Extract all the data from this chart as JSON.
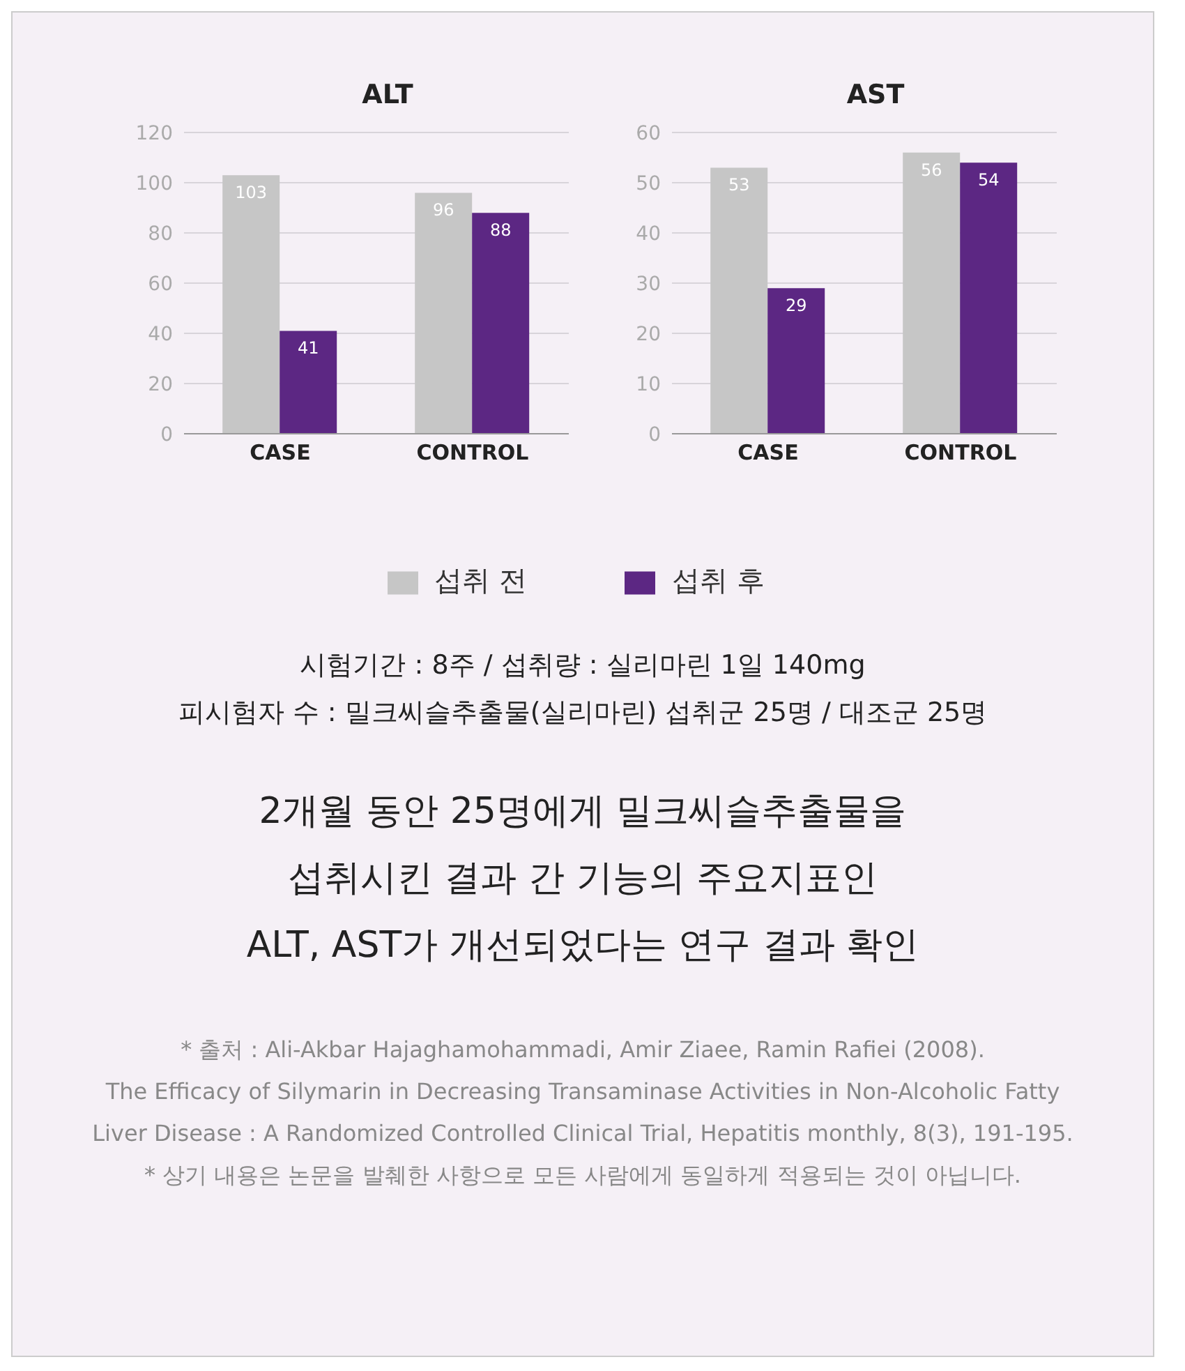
{
  "chart_data": [
    {
      "type": "bar",
      "title": "ALT",
      "categories": [
        "CASE",
        "CONTROL"
      ],
      "series": [
        {
          "name": "섭취 전",
          "color": "#c6c6c6",
          "values": [
            103,
            96
          ]
        },
        {
          "name": "섭취 후",
          "color": "#5c2783",
          "values": [
            41,
            88
          ]
        }
      ],
      "ylim": [
        0,
        120
      ],
      "yticks": [
        0,
        20,
        40,
        60,
        80,
        100,
        120
      ],
      "grid": "y",
      "data_labels": true,
      "legend": "bottom"
    },
    {
      "type": "bar",
      "title": "AST",
      "categories": [
        "CASE",
        "CONTROL"
      ],
      "series": [
        {
          "color": "#c6c6c6",
          "values": [
            53,
            56
          ]
        },
        {
          "color": "#5c2783",
          "values": [
            29,
            54
          ]
        }
      ],
      "ylim": [
        0,
        60
      ],
      "yticks": [
        0,
        10,
        20,
        30,
        40,
        50,
        60
      ],
      "grid": "y",
      "data_labels": true,
      "annotations": [
        "시험기간 : 8주 / 섭취량 : 실리마린 1일 140mg",
        "피시험자 수 : 밀크씨슬추출물(실리마린) 섭취군 25명 / 대조군 25명",
        "2개월 동안 25명에게 밀크씨슬추출물을",
        "섭취시킨 결과 간 기능의 주요지표인",
        "ALT, AST가 개선되었다는 연구 결과 확인",
        "* 출처 : Ali-Akbar Hajaghamohammadi, Amir Ziaee, Ramin Rafiei (2008).",
        "The Efficacy of Silymarin in Decreasing Transaminase Activities in Non-Alcoholic Fatty",
        "Liver Disease : A Randomized Controlled Clinical Trial, Hepatitis monthly, 8(3), 191-195.",
        "* 상기 내용은 논문을 발췌한 사항으로 모든 사람에게 동일하게 적용되는 것이 아닙니다."
      ]
    }
  ]
}
